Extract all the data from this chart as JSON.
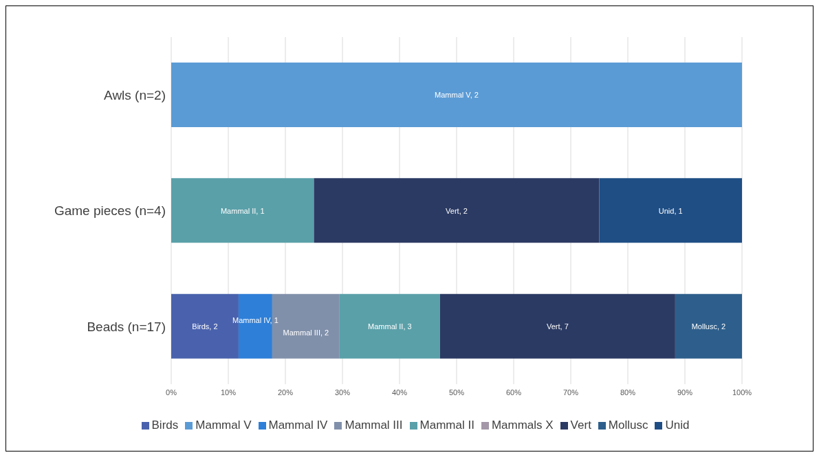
{
  "chart_data": {
    "type": "bar",
    "orientation": "horizontal",
    "stacked": true,
    "categories": [
      "Awls (n=2)",
      "Game pieces (n=4)",
      "Beads (n=17)"
    ],
    "series": [
      {
        "name": "Birds",
        "color": "#4a62ad",
        "values": [
          null,
          null,
          11.8
        ]
      },
      {
        "name": "Mammal V",
        "color": "#5b9bd5",
        "values": [
          100,
          null,
          null
        ]
      },
      {
        "name": "Mammal IV",
        "color": "#2e7fd8",
        "values": [
          null,
          null,
          5.9
        ]
      },
      {
        "name": "Mammal III",
        "color": "#8190aa",
        "values": [
          null,
          null,
          11.8
        ]
      },
      {
        "name": "Mammal II",
        "color": "#5aa0a9",
        "values": [
          null,
          25,
          17.6
        ]
      },
      {
        "name": "Mammals X",
        "color": "#a397a8",
        "values": [
          null,
          null,
          null
        ]
      },
      {
        "name": "Vert",
        "color": "#2b3a63",
        "values": [
          null,
          50,
          41.2
        ]
      },
      {
        "name": "Mollusc",
        "color": "#2e5f8c",
        "values": [
          null,
          null,
          11.7
        ]
      },
      {
        "name": "Unid",
        "color": "#1f4e85",
        "values": [
          null,
          25,
          null
        ]
      }
    ],
    "annotations": [
      "Mammal V, 2",
      "Mammal II, 1",
      "Vert, 2",
      "Unid, 1",
      "Birds, 2",
      "Mammal IV, 1",
      "Mammal III, 2",
      "Mammal II, 3",
      "Vert, 7",
      "Mollusc, 2"
    ],
    "xlim": [
      0,
      100
    ],
    "xticks": [
      {
        "value": 0,
        "label": "0%"
      },
      {
        "value": 10,
        "label": "10%"
      },
      {
        "value": 20,
        "label": "20%"
      },
      {
        "value": 30,
        "label": "30%"
      },
      {
        "value": 40,
        "label": "40%"
      },
      {
        "value": 50,
        "label": "50%"
      },
      {
        "value": 60,
        "label": "60%"
      },
      {
        "value": 70,
        "label": "70%"
      },
      {
        "value": 80,
        "label": "80%"
      },
      {
        "value": 90,
        "label": "90%"
      },
      {
        "value": 100,
        "label": "100%"
      }
    ],
    "grid": "x",
    "legend": "bottom"
  }
}
